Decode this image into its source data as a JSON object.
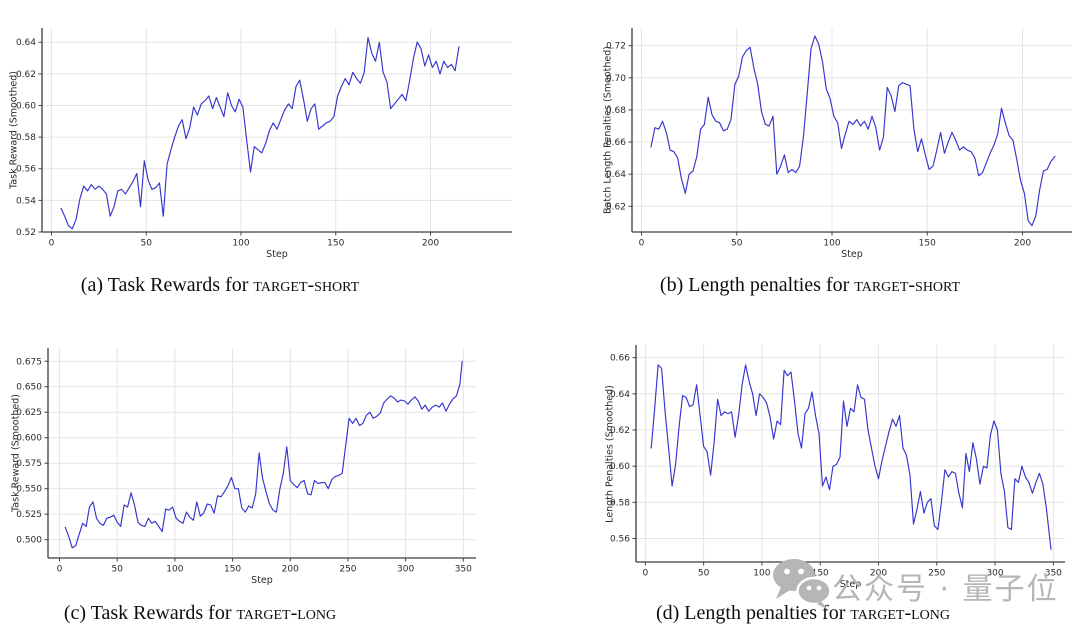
{
  "figure": {
    "watermark": {
      "icon": "wechat-icon",
      "text": "公众号 · 量子位",
      "color": "#b6b6b6"
    }
  },
  "chart_data": [
    {
      "id": "a",
      "type": "line",
      "caption_prefix": "(a) Task Rewards for ",
      "caption_smallcaps": "target-short",
      "xlabel": "Step",
      "ylabel": "Task Reward (Smoothed)",
      "line_color": "#3434cf",
      "grid_color": "#e4e4e4",
      "legend": "none",
      "grid": true,
      "xlim": [
        -5,
        243
      ],
      "ylim": [
        0.52,
        0.649
      ],
      "xticks": [
        0,
        50,
        100,
        150,
        200
      ],
      "xtick_labels": [
        "0",
        "50",
        "100",
        "150",
        "200"
      ],
      "yticks": [
        0.52,
        0.54,
        0.56,
        0.58,
        0.6,
        0.62,
        0.64
      ],
      "ytick_labels": [
        "0.52",
        "0.54",
        "0.56",
        "0.58",
        "0.60",
        "0.62",
        "0.64"
      ],
      "x": [
        5,
        7,
        9,
        11,
        13,
        15,
        17,
        19,
        21,
        23,
        25,
        27,
        29,
        31,
        33,
        35,
        37,
        39,
        41,
        43,
        45,
        47,
        49,
        51,
        53,
        55,
        57,
        59,
        61,
        63,
        65,
        67,
        69,
        71,
        73,
        75,
        77,
        79,
        81,
        83,
        85,
        87,
        89,
        91,
        93,
        95,
        97,
        99,
        101,
        103,
        105,
        107,
        109,
        111,
        113,
        115,
        117,
        119,
        121,
        123,
        125,
        127,
        129,
        131,
        133,
        135,
        137,
        139,
        141,
        143,
        145,
        147,
        149,
        151,
        153,
        155,
        157,
        159,
        161,
        163,
        165,
        167,
        169,
        171,
        173,
        175,
        177,
        179,
        181,
        183,
        185,
        187,
        189,
        191,
        193,
        195,
        197,
        199,
        201,
        203,
        205,
        207,
        209,
        211,
        213,
        215
      ],
      "y": [
        0.535,
        0.53,
        0.524,
        0.522,
        0.528,
        0.541,
        0.549,
        0.546,
        0.55,
        0.547,
        0.549,
        0.547,
        0.544,
        0.53,
        0.536,
        0.546,
        0.547,
        0.544,
        0.548,
        0.552,
        0.557,
        0.536,
        0.565,
        0.553,
        0.547,
        0.548,
        0.551,
        0.53,
        0.563,
        0.572,
        0.58,
        0.587,
        0.591,
        0.579,
        0.586,
        0.599,
        0.594,
        0.601,
        0.603,
        0.606,
        0.598,
        0.605,
        0.599,
        0.593,
        0.608,
        0.6,
        0.596,
        0.604,
        0.599,
        0.578,
        0.558,
        0.574,
        0.572,
        0.57,
        0.576,
        0.584,
        0.589,
        0.585,
        0.591,
        0.597,
        0.601,
        0.598,
        0.612,
        0.616,
        0.604,
        0.59,
        0.598,
        0.601,
        0.585,
        0.587,
        0.589,
        0.59,
        0.593,
        0.606,
        0.612,
        0.617,
        0.613,
        0.621,
        0.617,
        0.614,
        0.621,
        0.643,
        0.633,
        0.628,
        0.64,
        0.621,
        0.615,
        0.598,
        0.601,
        0.604,
        0.607,
        0.603,
        0.616,
        0.63,
        0.64,
        0.636,
        0.625,
        0.632,
        0.624,
        0.628,
        0.62,
        0.628,
        0.624,
        0.626,
        0.622,
        0.637
      ]
    },
    {
      "id": "b",
      "type": "line",
      "caption_prefix": "(b) Length penalties for ",
      "caption_smallcaps": "target-short",
      "xlabel": "Step",
      "ylabel": "Batch Length Penalties (Smoothed)",
      "line_color": "#3434cf",
      "grid_color": "#e4e4e4",
      "legend": "none",
      "grid": true,
      "xlim": [
        -5,
        226
      ],
      "ylim": [
        0.604,
        0.731
      ],
      "xticks": [
        0,
        50,
        100,
        150,
        200
      ],
      "xtick_labels": [
        "0",
        "50",
        "100",
        "150",
        "200"
      ],
      "yticks": [
        0.62,
        0.64,
        0.66,
        0.68,
        0.7,
        0.72
      ],
      "ytick_labels": [
        "0.62",
        "0.64",
        "0.66",
        "0.68",
        "0.70",
        "0.72"
      ],
      "x": [
        5,
        7,
        9,
        11,
        13,
        15,
        17,
        19,
        21,
        23,
        25,
        27,
        29,
        31,
        33,
        35,
        37,
        39,
        41,
        43,
        45,
        47,
        49,
        51,
        53,
        55,
        57,
        59,
        61,
        63,
        65,
        67,
        69,
        71,
        73,
        75,
        77,
        79,
        81,
        83,
        85,
        87,
        89,
        91,
        93,
        95,
        97,
        99,
        101,
        103,
        105,
        107,
        109,
        111,
        113,
        115,
        117,
        119,
        121,
        123,
        125,
        127,
        129,
        131,
        133,
        135,
        137,
        139,
        141,
        143,
        145,
        147,
        149,
        151,
        153,
        155,
        157,
        159,
        161,
        163,
        165,
        167,
        169,
        171,
        173,
        175,
        177,
        179,
        181,
        183,
        185,
        187,
        189,
        191,
        193,
        195,
        197,
        199,
        201,
        203,
        205,
        207,
        209,
        211,
        213,
        215,
        217
      ],
      "y": [
        0.657,
        0.669,
        0.668,
        0.673,
        0.666,
        0.655,
        0.654,
        0.65,
        0.637,
        0.628,
        0.64,
        0.642,
        0.651,
        0.668,
        0.671,
        0.688,
        0.677,
        0.673,
        0.672,
        0.667,
        0.668,
        0.674,
        0.696,
        0.701,
        0.713,
        0.717,
        0.719,
        0.706,
        0.696,
        0.679,
        0.671,
        0.67,
        0.676,
        0.64,
        0.645,
        0.652,
        0.641,
        0.643,
        0.641,
        0.645,
        0.663,
        0.69,
        0.718,
        0.726,
        0.721,
        0.71,
        0.693,
        0.687,
        0.676,
        0.672,
        0.656,
        0.665,
        0.673,
        0.671,
        0.674,
        0.67,
        0.673,
        0.668,
        0.676,
        0.669,
        0.655,
        0.663,
        0.694,
        0.689,
        0.679,
        0.695,
        0.697,
        0.696,
        0.695,
        0.668,
        0.654,
        0.662,
        0.652,
        0.643,
        0.645,
        0.655,
        0.666,
        0.653,
        0.66,
        0.666,
        0.661,
        0.655,
        0.657,
        0.655,
        0.654,
        0.65,
        0.639,
        0.641,
        0.647,
        0.653,
        0.658,
        0.665,
        0.681,
        0.672,
        0.664,
        0.661,
        0.649,
        0.636,
        0.628,
        0.611,
        0.608,
        0.614,
        0.63,
        0.642,
        0.643,
        0.648,
        0.651
      ]
    },
    {
      "id": "c",
      "type": "line",
      "caption_prefix": "(c) Task Rewards for ",
      "caption_smallcaps": "target-long",
      "xlabel": "Step",
      "ylabel": "Task Reward (Smoothed)",
      "line_color": "#3434cf",
      "grid_color": "#e4e4e4",
      "legend": "none",
      "grid": true,
      "xlim": [
        -10,
        361
      ],
      "ylim": [
        0.482,
        0.688
      ],
      "xticks": [
        0,
        50,
        100,
        150,
        200,
        250,
        300,
        350
      ],
      "xtick_labels": [
        "0",
        "50",
        "100",
        "150",
        "200",
        "250",
        "300",
        "350"
      ],
      "yticks": [
        0.5,
        0.525,
        0.55,
        0.575,
        0.6,
        0.625,
        0.65,
        0.675
      ],
      "ytick_labels": [
        "0.500",
        "0.525",
        "0.550",
        "0.575",
        "0.600",
        "0.625",
        "0.650",
        "0.675"
      ],
      "x": [
        5,
        8,
        11,
        14,
        17,
        20,
        23,
        26,
        29,
        32,
        35,
        38,
        41,
        44,
        47,
        50,
        53,
        56,
        59,
        62,
        65,
        68,
        71,
        74,
        77,
        80,
        83,
        86,
        89,
        92,
        95,
        98,
        101,
        104,
        107,
        110,
        113,
        116,
        119,
        122,
        125,
        128,
        131,
        134,
        137,
        140,
        143,
        146,
        149,
        152,
        155,
        158,
        161,
        164,
        167,
        170,
        173,
        176,
        179,
        182,
        185,
        188,
        191,
        194,
        197,
        200,
        203,
        206,
        209,
        212,
        215,
        218,
        221,
        224,
        227,
        230,
        233,
        236,
        239,
        242,
        245,
        248,
        251,
        254,
        257,
        260,
        263,
        266,
        269,
        272,
        275,
        278,
        281,
        284,
        287,
        290,
        293,
        296,
        299,
        302,
        305,
        308,
        311,
        314,
        317,
        320,
        323,
        326,
        329,
        332,
        335,
        338,
        341,
        344,
        347,
        349
      ],
      "y": [
        0.512,
        0.503,
        0.492,
        0.494,
        0.505,
        0.516,
        0.513,
        0.532,
        0.537,
        0.521,
        0.516,
        0.514,
        0.521,
        0.522,
        0.524,
        0.517,
        0.513,
        0.534,
        0.532,
        0.546,
        0.534,
        0.517,
        0.514,
        0.513,
        0.521,
        0.516,
        0.518,
        0.513,
        0.508,
        0.53,
        0.529,
        0.532,
        0.521,
        0.518,
        0.516,
        0.527,
        0.522,
        0.519,
        0.537,
        0.523,
        0.526,
        0.535,
        0.534,
        0.526,
        0.543,
        0.542,
        0.547,
        0.553,
        0.561,
        0.55,
        0.55,
        0.531,
        0.527,
        0.533,
        0.531,
        0.545,
        0.585,
        0.56,
        0.547,
        0.535,
        0.529,
        0.527,
        0.55,
        0.565,
        0.591,
        0.558,
        0.554,
        0.551,
        0.556,
        0.558,
        0.545,
        0.544,
        0.558,
        0.555,
        0.556,
        0.556,
        0.55,
        0.559,
        0.562,
        0.563,
        0.565,
        0.592,
        0.619,
        0.614,
        0.619,
        0.612,
        0.614,
        0.622,
        0.625,
        0.619,
        0.621,
        0.624,
        0.634,
        0.638,
        0.641,
        0.639,
        0.635,
        0.637,
        0.636,
        0.633,
        0.637,
        0.64,
        0.636,
        0.628,
        0.632,
        0.626,
        0.63,
        0.632,
        0.63,
        0.634,
        0.626,
        0.633,
        0.638,
        0.641,
        0.652,
        0.675
      ]
    },
    {
      "id": "d",
      "type": "line",
      "caption_prefix": "(d) Length penalties for ",
      "caption_smallcaps": "target-long",
      "xlabel": "Step",
      "ylabel": "Length Penalties (Smoothed)",
      "line_color": "#3434cf",
      "grid_color": "#e4e4e4",
      "legend": "none",
      "grid": true,
      "xlim": [
        -8,
        360
      ],
      "ylim": [
        0.547,
        0.667
      ],
      "xticks": [
        0,
        50,
        100,
        150,
        200,
        250,
        300,
        350
      ],
      "xtick_labels": [
        "0",
        "50",
        "100",
        "150",
        "200",
        "250",
        "300",
        "350"
      ],
      "yticks": [
        0.56,
        0.58,
        0.6,
        0.62,
        0.64,
        0.66
      ],
      "ytick_labels": [
        "0.56",
        "0.58",
        "0.60",
        "0.62",
        "0.64",
        "0.66"
      ],
      "x": [
        5,
        8,
        11,
        14,
        17,
        20,
        23,
        26,
        29,
        32,
        35,
        38,
        41,
        44,
        47,
        50,
        53,
        56,
        59,
        62,
        65,
        68,
        71,
        74,
        77,
        80,
        83,
        86,
        89,
        92,
        95,
        98,
        101,
        104,
        107,
        110,
        113,
        116,
        119,
        122,
        125,
        128,
        131,
        134,
        137,
        140,
        143,
        146,
        149,
        152,
        155,
        158,
        161,
        164,
        167,
        170,
        173,
        176,
        179,
        182,
        185,
        188,
        191,
        194,
        197,
        200,
        203,
        206,
        209,
        212,
        215,
        218,
        221,
        224,
        227,
        230,
        233,
        236,
        239,
        242,
        245,
        248,
        251,
        254,
        257,
        260,
        263,
        266,
        269,
        272,
        275,
        278,
        281,
        284,
        287,
        290,
        293,
        296,
        299,
        302,
        305,
        308,
        311,
        314,
        317,
        320,
        323,
        326,
        329,
        332,
        335,
        338,
        341,
        344,
        348
      ],
      "y": [
        0.61,
        0.632,
        0.656,
        0.654,
        0.63,
        0.61,
        0.589,
        0.601,
        0.622,
        0.639,
        0.638,
        0.633,
        0.634,
        0.645,
        0.628,
        0.611,
        0.608,
        0.595,
        0.613,
        0.637,
        0.628,
        0.63,
        0.629,
        0.63,
        0.616,
        0.628,
        0.645,
        0.656,
        0.647,
        0.64,
        0.628,
        0.64,
        0.638,
        0.635,
        0.627,
        0.615,
        0.625,
        0.623,
        0.653,
        0.65,
        0.652,
        0.636,
        0.618,
        0.61,
        0.629,
        0.632,
        0.641,
        0.628,
        0.618,
        0.589,
        0.594,
        0.587,
        0.6,
        0.601,
        0.605,
        0.636,
        0.622,
        0.632,
        0.63,
        0.645,
        0.638,
        0.637,
        0.62,
        0.61,
        0.6,
        0.593,
        0.603,
        0.611,
        0.619,
        0.626,
        0.622,
        0.628,
        0.61,
        0.606,
        0.595,
        0.568,
        0.576,
        0.586,
        0.574,
        0.58,
        0.582,
        0.567,
        0.565,
        0.58,
        0.598,
        0.594,
        0.597,
        0.596,
        0.585,
        0.577,
        0.607,
        0.597,
        0.613,
        0.604,
        0.59,
        0.6,
        0.599,
        0.617,
        0.625,
        0.62,
        0.596,
        0.586,
        0.566,
        0.565,
        0.593,
        0.591,
        0.6,
        0.594,
        0.591,
        0.585,
        0.591,
        0.596,
        0.59,
        0.577,
        0.554
      ]
    }
  ]
}
